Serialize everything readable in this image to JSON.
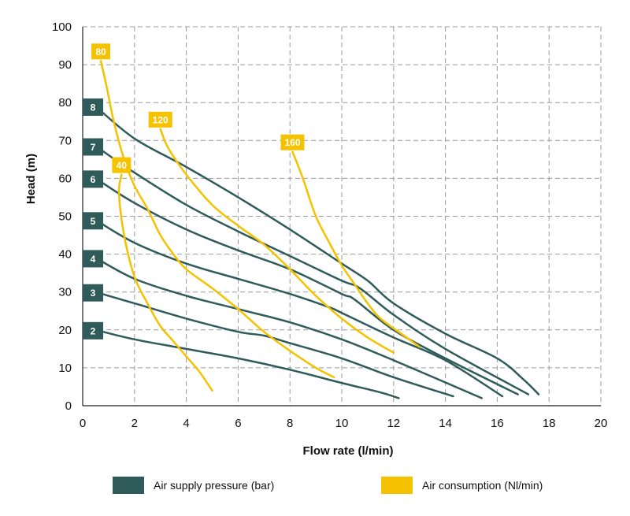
{
  "chart_data": {
    "type": "line",
    "xlabel": "Flow rate (l/min)",
    "ylabel": "Head (m)",
    "xlim": [
      0,
      20
    ],
    "ylim": [
      0,
      100
    ],
    "xticks": [
      0,
      2,
      4,
      6,
      8,
      10,
      12,
      14,
      16,
      18,
      20
    ],
    "yticks": [
      0,
      10,
      20,
      30,
      40,
      50,
      60,
      70,
      80,
      90,
      100
    ],
    "grid": "dashed",
    "colors": {
      "pressure": "#2f5b5b",
      "air": "#f5c200"
    },
    "legend": {
      "placement": "bottom",
      "items": [
        {
          "label": "Air supply pressure (bar)",
          "color": "#2f5b5b"
        },
        {
          "label": "Air consumption (Nl/min)",
          "color": "#f5c200"
        }
      ]
    },
    "pressure_series": [
      {
        "name": "2",
        "points": [
          [
            0.5,
            20
          ],
          [
            2,
            17.5
          ],
          [
            4,
            15
          ],
          [
            6,
            12.5
          ],
          [
            8,
            9.5
          ],
          [
            10,
            6
          ],
          [
            11.5,
            3.5
          ],
          [
            12.2,
            2
          ]
        ]
      },
      {
        "name": "3",
        "points": [
          [
            0.5,
            30
          ],
          [
            2,
            27
          ],
          [
            4,
            23
          ],
          [
            6,
            19.5
          ],
          [
            7,
            18.5
          ],
          [
            8,
            16.5
          ],
          [
            10,
            12.5
          ],
          [
            12,
            7.5
          ],
          [
            14.3,
            2.5
          ]
        ]
      },
      {
        "name": "4",
        "points": [
          [
            0.5,
            39
          ],
          [
            2,
            33.5
          ],
          [
            4,
            29
          ],
          [
            6,
            25.5
          ],
          [
            8,
            22
          ],
          [
            10,
            17.5
          ],
          [
            12,
            12
          ],
          [
            15.4,
            2
          ]
        ]
      },
      {
        "name": "5",
        "points": [
          [
            0.5,
            49
          ],
          [
            2,
            43
          ],
          [
            4,
            37.5
          ],
          [
            6,
            33.5
          ],
          [
            8,
            29.5
          ],
          [
            9.5,
            26
          ],
          [
            10,
            24.5
          ],
          [
            12,
            18
          ],
          [
            14,
            12
          ],
          [
            16.2,
            2.5
          ]
        ]
      },
      {
        "name": "6",
        "points": [
          [
            0.5,
            60
          ],
          [
            2,
            53.5
          ],
          [
            4,
            46.5
          ],
          [
            6,
            41
          ],
          [
            8,
            36
          ],
          [
            10,
            29.5
          ],
          [
            10.5,
            28
          ],
          [
            12,
            20
          ],
          [
            14,
            12.5
          ],
          [
            16.8,
            3
          ]
        ]
      },
      {
        "name": "7",
        "points": [
          [
            0.5,
            68.5
          ],
          [
            2,
            61.5
          ],
          [
            4,
            53
          ],
          [
            6,
            46
          ],
          [
            8,
            39.5
          ],
          [
            10,
            33
          ],
          [
            10.7,
            31
          ],
          [
            12,
            24
          ],
          [
            14,
            15
          ],
          [
            17.2,
            3
          ]
        ]
      },
      {
        "name": "8",
        "points": [
          [
            0.5,
            79
          ],
          [
            2,
            70.5
          ],
          [
            4,
            63
          ],
          [
            6,
            55
          ],
          [
            8,
            46.5
          ],
          [
            10,
            37.5
          ],
          [
            11,
            33
          ],
          [
            12,
            27
          ],
          [
            14,
            19
          ],
          [
            16,
            12.5
          ],
          [
            17,
            7
          ],
          [
            17.6,
            3
          ]
        ]
      }
    ],
    "air_series": [
      {
        "name": "40",
        "points": [
          [
            1.5,
            61
          ],
          [
            1.4,
            56
          ],
          [
            1.6,
            45
          ],
          [
            2,
            34
          ],
          [
            2.5,
            27
          ],
          [
            3,
            21
          ],
          [
            3.5,
            17
          ],
          [
            4,
            13
          ],
          [
            4.5,
            9
          ],
          [
            5,
            4
          ]
        ]
      },
      {
        "name": "80",
        "points": [
          [
            0.7,
            91
          ],
          [
            0.9,
            85
          ],
          [
            1.2,
            75
          ],
          [
            1.6,
            65
          ],
          [
            2,
            58
          ],
          [
            2.5,
            52
          ],
          [
            3,
            45
          ],
          [
            3.5,
            40
          ],
          [
            4,
            36
          ],
          [
            5,
            31
          ],
          [
            6,
            25.5
          ],
          [
            7,
            19.5
          ],
          [
            8,
            14.5
          ],
          [
            9,
            10
          ],
          [
            9.7,
            7.5
          ]
        ]
      },
      {
        "name": "120",
        "points": [
          [
            3,
            73
          ],
          [
            3.3,
            68
          ],
          [
            4,
            61
          ],
          [
            5,
            53
          ],
          [
            6,
            47.5
          ],
          [
            7,
            42.5
          ],
          [
            8,
            36
          ],
          [
            9,
            29
          ],
          [
            10,
            23
          ],
          [
            11,
            18
          ],
          [
            12,
            14
          ]
        ]
      },
      {
        "name": "160",
        "points": [
          [
            8.1,
            67
          ],
          [
            8.5,
            60
          ],
          [
            9,
            50
          ],
          [
            9.6,
            42
          ],
          [
            10,
            37
          ],
          [
            10.5,
            32
          ],
          [
            11,
            27
          ],
          [
            11.5,
            23
          ],
          [
            12.5,
            18
          ],
          [
            13,
            15.5
          ]
        ]
      }
    ]
  }
}
